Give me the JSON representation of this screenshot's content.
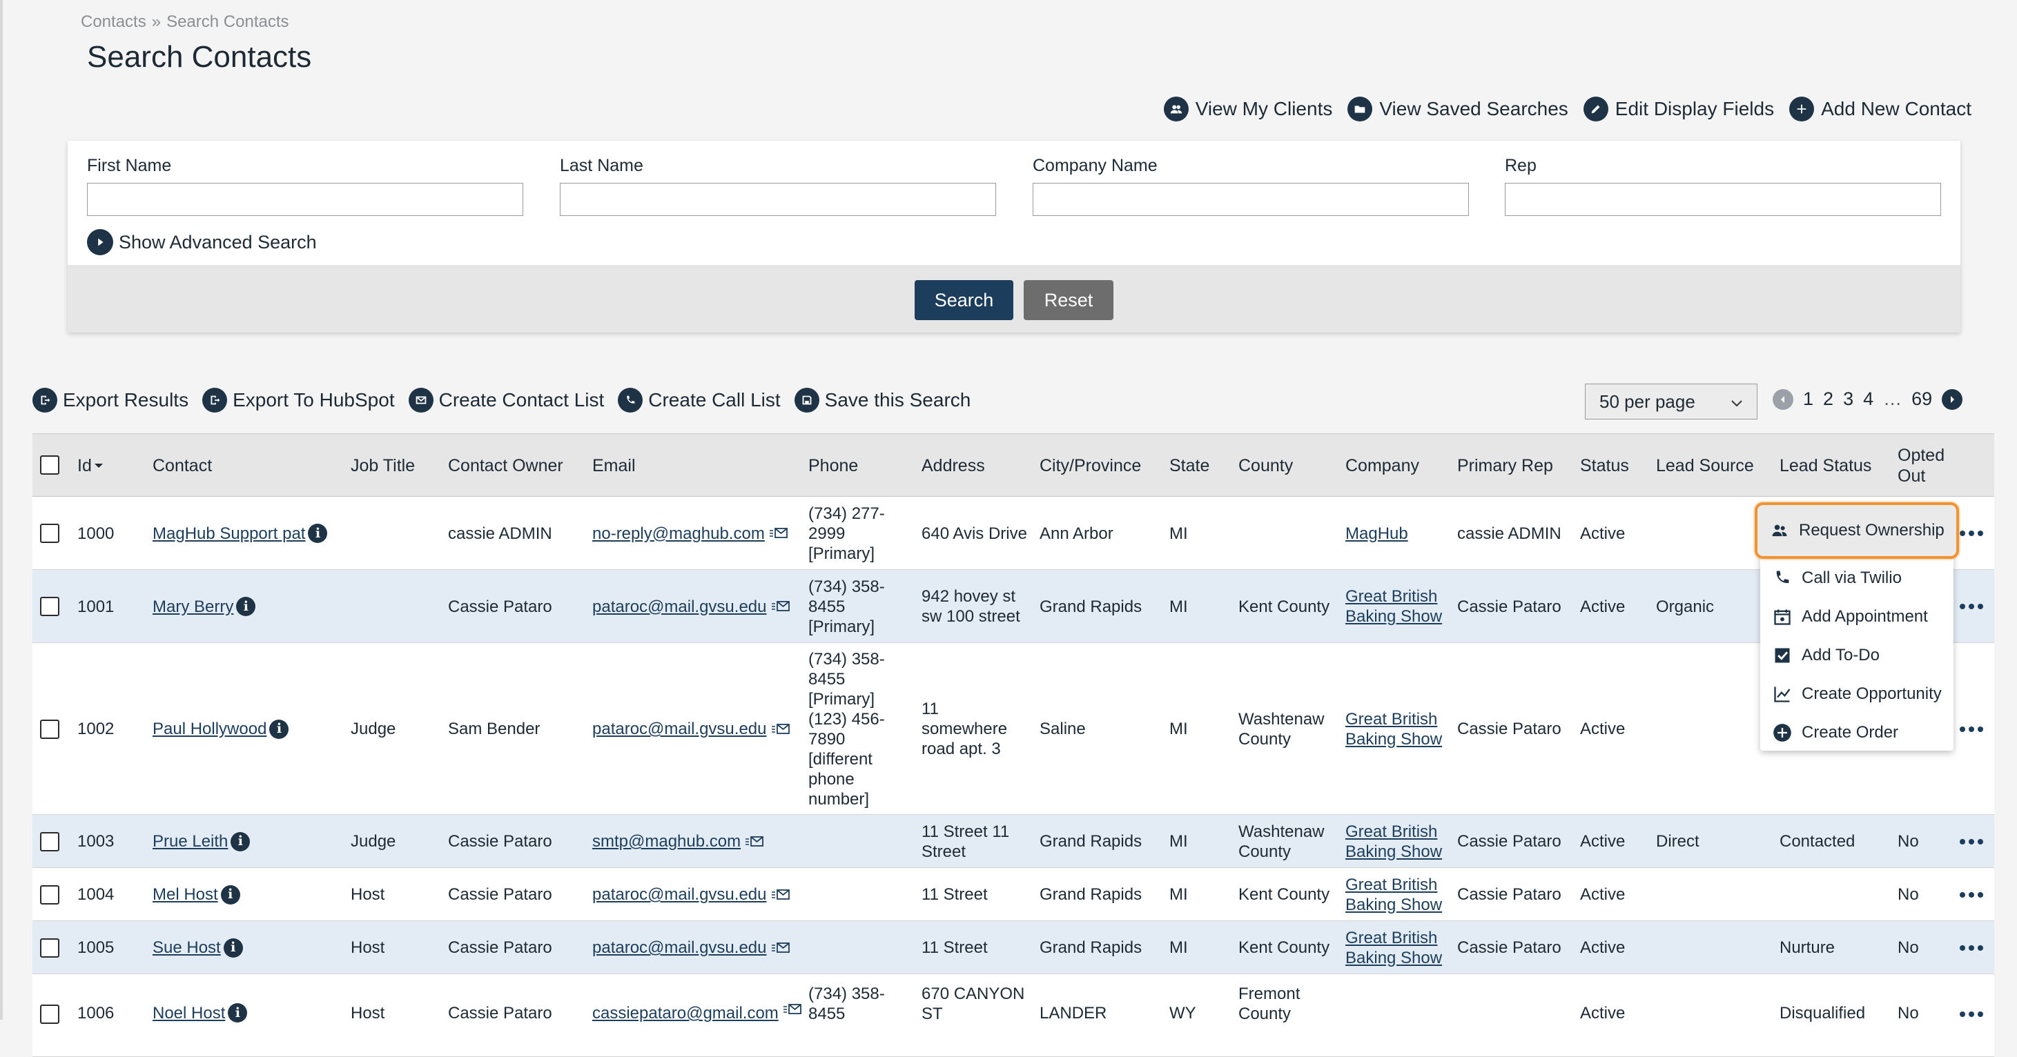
{
  "breadcrumb": {
    "root": "Contacts",
    "sep": "»",
    "current": "Search Contacts"
  },
  "page_title": "Search Contacts",
  "top_actions": {
    "my_clients": "View My Clients",
    "saved_searches": "View Saved Searches",
    "edit_fields": "Edit Display Fields",
    "add_contact": "Add New Contact"
  },
  "search_form": {
    "first_name_label": "First Name",
    "last_name_label": "Last Name",
    "company_label": "Company Name",
    "rep_label": "Rep",
    "advanced_toggle": "Show Advanced Search",
    "search_button": "Search",
    "reset_button": "Reset"
  },
  "results_toolbar": {
    "export": "Export Results",
    "hubspot": "Export To HubSpot",
    "contact_list": "Create Contact List",
    "call_list": "Create Call List",
    "save_search": "Save this Search"
  },
  "pagination": {
    "per_page": "50 per page",
    "pages": [
      "1",
      "2",
      "3",
      "4"
    ],
    "ellipsis": "…",
    "last": "69"
  },
  "table": {
    "headers": {
      "id": "Id",
      "contact": "Contact",
      "job_title": "Job Title",
      "owner": "Contact Owner",
      "email": "Email",
      "phone": "Phone",
      "address": "Address",
      "city": "City/Province",
      "state": "State",
      "county": "County",
      "company": "Company",
      "rep": "Primary Rep",
      "status": "Status",
      "lead_source": "Lead Source",
      "lead_status": "Lead Status",
      "opted_out_1": "Opted",
      "opted_out_2": "Out"
    },
    "rows": [
      {
        "id": "1000",
        "contact": "MagHub Support pat",
        "job": "",
        "owner": "cassie ADMIN",
        "email": "no-reply@maghub.com",
        "phone": [
          "(734) 277-",
          "2999",
          "[Primary]"
        ],
        "address": [
          "640 Avis Drive"
        ],
        "city": "Ann Arbor",
        "state": "MI",
        "county": [
          ""
        ],
        "company": [
          "MagHub"
        ],
        "rep": "cassie ADMIN",
        "status": "Active",
        "lead_source": "",
        "lead_status": "",
        "opted": ""
      },
      {
        "id": "1001",
        "contact": "Mary Berry",
        "job": "",
        "owner": "Cassie Pataro",
        "email": "pataroc@mail.gvsu.edu",
        "phone": [
          "(734) 358-",
          "8455",
          "[Primary]"
        ],
        "address": [
          "942 hovey st",
          "sw 100 street"
        ],
        "city": "Grand Rapids",
        "state": "MI",
        "county": [
          "Kent County"
        ],
        "company": [
          "Great British",
          "Baking Show"
        ],
        "rep": "Cassie Pataro",
        "status": "Active",
        "lead_source": "Organic",
        "lead_status": "",
        "opted": ""
      },
      {
        "id": "1002",
        "contact": "Paul Hollywood",
        "job": "Judge",
        "owner": "Sam Bender",
        "email": "pataroc@mail.gvsu.edu",
        "phone": [
          "(734) 358-",
          "8455",
          "[Primary]",
          "(123) 456-",
          "7890",
          "[different",
          "phone",
          "number]"
        ],
        "address": [
          "11",
          "somewhere",
          "road apt. 3"
        ],
        "city": "Saline",
        "state": "MI",
        "county": [
          "Washtenaw",
          "County"
        ],
        "company": [
          "Great British",
          "Baking Show"
        ],
        "rep": "Cassie Pataro",
        "status": "Active",
        "lead_source": "",
        "lead_status": "",
        "opted": ""
      },
      {
        "id": "1003",
        "contact": "Prue Leith",
        "job": "Judge",
        "owner": "Cassie Pataro",
        "email": "smtp@maghub.com",
        "phone": [],
        "address": [
          "11 Street 11",
          "Street"
        ],
        "city": "Grand Rapids",
        "state": "MI",
        "county": [
          "Washtenaw",
          "County"
        ],
        "company": [
          "Great British",
          "Baking Show"
        ],
        "rep": "Cassie Pataro",
        "status": "Active",
        "lead_source": "Direct",
        "lead_status": "Contacted",
        "opted": "No"
      },
      {
        "id": "1004",
        "contact": "Mel Host",
        "job": "Host",
        "owner": "Cassie Pataro",
        "email": "pataroc@mail.gvsu.edu",
        "phone": [],
        "address": [
          "11 Street"
        ],
        "city": "Grand Rapids",
        "state": "MI",
        "county": [
          "Kent County"
        ],
        "company": [
          "Great British",
          "Baking Show"
        ],
        "rep": "Cassie Pataro",
        "status": "Active",
        "lead_source": "",
        "lead_status": "",
        "opted": "No"
      },
      {
        "id": "1005",
        "contact": "Sue Host",
        "job": "Host",
        "owner": "Cassie Pataro",
        "email": "pataroc@mail.gvsu.edu",
        "phone": [],
        "address": [
          "11 Street"
        ],
        "city": "Grand Rapids",
        "state": "MI",
        "county": [
          "Kent County"
        ],
        "company": [
          "Great British",
          "Baking Show"
        ],
        "rep": "Cassie Pataro",
        "status": "Active",
        "lead_source": "",
        "lead_status": "Nurture",
        "opted": "No"
      },
      {
        "id": "1006",
        "contact": "Noel Host",
        "job": "Host",
        "owner": "Cassie Pataro",
        "email": "cassiepataro@gmail.com",
        "phone": [
          "(734) 358-",
          "8455"
        ],
        "address": [
          "670 CANYON",
          "ST"
        ],
        "city": "LANDER",
        "state": "WY",
        "county": [
          "Fremont",
          "County"
        ],
        "company": [
          ""
        ],
        "rep": "",
        "status": "Active",
        "lead_source": "",
        "lead_status": "Disqualified",
        "opted": "No"
      }
    ]
  },
  "context_menu": {
    "request_ownership": "Request Ownership",
    "call_twilio": "Call via Twilio",
    "add_appointment": "Add Appointment",
    "add_todo": "Add To-Do",
    "create_opportunity": "Create Opportunity",
    "create_order": "Create Order"
  },
  "colors": {
    "primary": "#1e3346",
    "accent_highlight": "#f29331",
    "row_alt": "#e3ecf5",
    "reset": "#6d6d6d"
  }
}
